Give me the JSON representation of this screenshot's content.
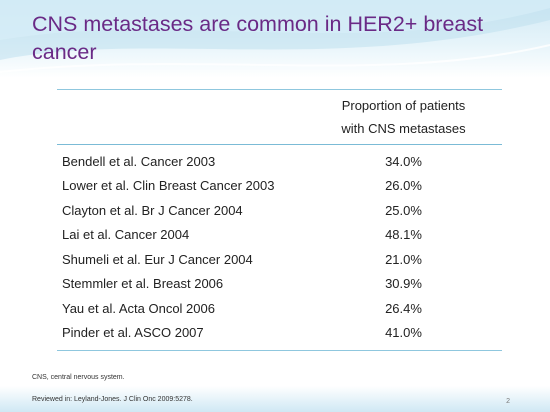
{
  "slide": {
    "title": "CNS metastases are common in HER2+ breast cancer",
    "footnote": "CNS, central nervous system.",
    "reference": "Reviewed in: Leyland-Jones. J Clin Onc 2009:5278.",
    "page_number": "2"
  },
  "table": {
    "header": {
      "col1": "",
      "col2_line1": "Proportion of patients",
      "col2_line2": "with CNS metastases"
    },
    "rows": [
      {
        "study": "Bendell et al. Cancer 2003",
        "proportion": "34.0%"
      },
      {
        "study": "Lower et al. Clin Breast Cancer 2003",
        "proportion": "26.0%"
      },
      {
        "study": "Clayton et al. Br J Cancer 2004",
        "proportion": "25.0%"
      },
      {
        "study": "Lai et al. Cancer 2004",
        "proportion": "48.1%"
      },
      {
        "study": "Shumeli et al. Eur J Cancer 2004",
        "proportion": "21.0%"
      },
      {
        "study": "Stemmler et al. Breast 2006",
        "proportion": "30.9%"
      },
      {
        "study": "Yau et al. Acta Oncol 2006",
        "proportion": "26.4%"
      },
      {
        "study": "Pinder et al. ASCO 2007",
        "proportion": "41.0%"
      }
    ]
  },
  "colors": {
    "title": "#6a2a86",
    "rule": "#7bbbd6",
    "band": "#cfe8f4"
  }
}
